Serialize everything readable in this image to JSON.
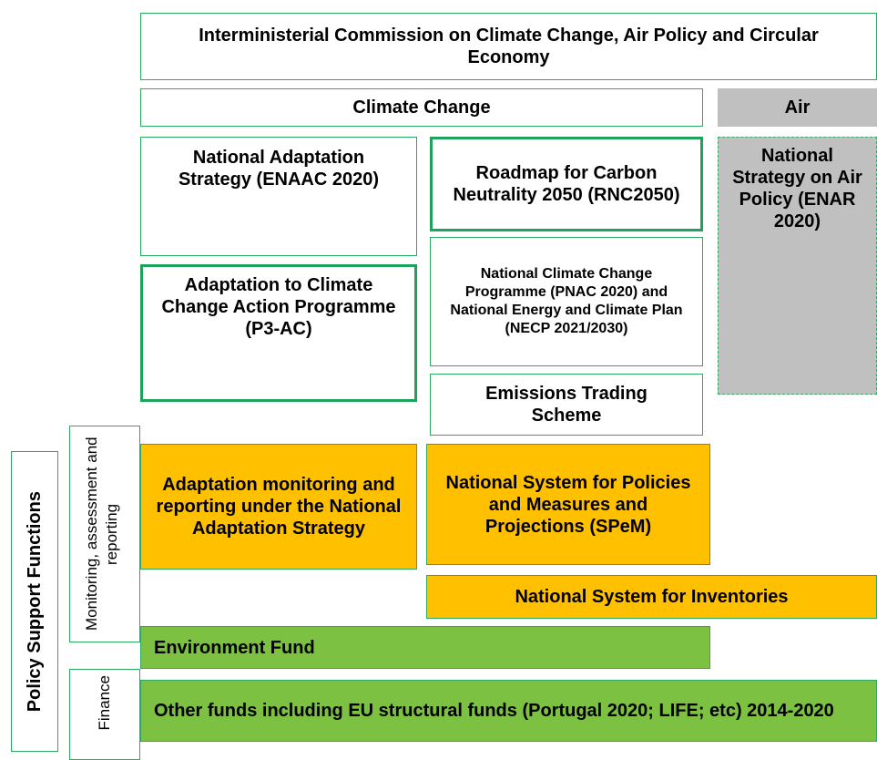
{
  "header": {
    "title": "Interministerial Commission on Climate Change, Air Policy and Circular Economy"
  },
  "columns": {
    "climate_change": "Climate Change",
    "air": "Air"
  },
  "boxes": {
    "national_adaptation_strategy": "National Adaptation Strategy (ENAAC 2020)",
    "roadmap": "Roadmap for Carbon Neutrality 2050 (RNC2050)",
    "pnac": "National Climate Change Programme (PNAC 2020) and National Energy and Climate Plan (NECP 2021/2030)",
    "emissions_trading": "Emissions Trading Scheme",
    "air_policy": "National Strategy on Air Policy (ENAR 2020)",
    "p3ac": "Adaptation to Climate Change Action Programme (P3-AC)",
    "adaptation_monitoring": "Adaptation monitoring and reporting under the National Adaptation Strategy",
    "spem": "National System for Policies and Measures and Projections (SPeM)",
    "inventories": "National System for Inventories",
    "environment_fund": "Environment Fund",
    "other_funds": "Other funds including EU structural funds (Portugal 2020; LIFE; etc) 2014-2020"
  },
  "side_labels": {
    "policy_support": "Policy Support Functions",
    "monitoring": "Monitoring, assessment and reporting",
    "finance": "Finance"
  }
}
